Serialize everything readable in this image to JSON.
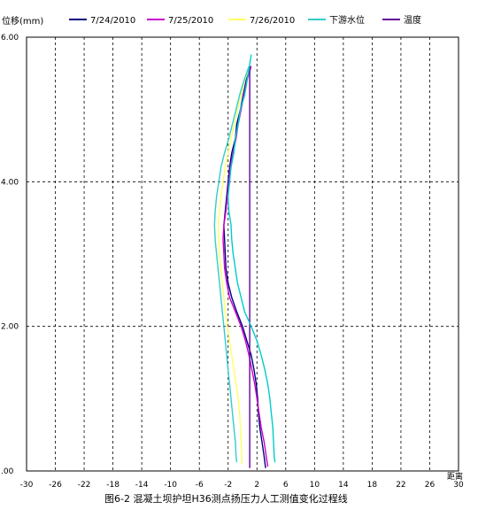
{
  "chart_data": {
    "type": "line",
    "title": "",
    "caption": "图6-2  混凝土坝护坦H36测点扬压力人工测值变化过程线",
    "ylabel": "位移(mm)",
    "xlabel": "距离",
    "xlim": [
      -30,
      30
    ],
    "ylim": [
      0,
      30
    ],
    "x_ticks": [
      -30,
      -26,
      -22,
      -18,
      -14,
      -10,
      -6,
      -2,
      2,
      6,
      10,
      14,
      18,
      22,
      26,
      30
    ],
    "x_tick_labels": [
      "-30",
      "-26",
      "-22",
      "-18",
      "-14",
      "-10",
      "-6",
      "-2",
      "2",
      "6",
      "10",
      "14",
      "18",
      "22",
      "26",
      "30"
    ],
    "y_tick_labels": [
      ".00",
      "2.00",
      "4.00",
      "6.00"
    ],
    "y_tick_values": [
      0,
      10,
      20,
      30
    ],
    "grid": true,
    "legend_position": "top",
    "series": [
      {
        "name": "7/24/2010",
        "color": "#000080",
        "points": [
          [
            1.1,
            28
          ],
          [
            0.5,
            27
          ],
          [
            0.1,
            26
          ],
          [
            -0.3,
            25
          ],
          [
            -0.8,
            24
          ],
          [
            -1.0,
            23
          ],
          [
            -1.5,
            22
          ],
          [
            -1.8,
            21
          ],
          [
            -2.0,
            20
          ],
          [
            -2.2,
            19
          ],
          [
            -2.4,
            18
          ],
          [
            -2.6,
            17
          ],
          [
            -2.5,
            16
          ],
          [
            -2.4,
            15
          ],
          [
            -2.3,
            14
          ],
          [
            -2.0,
            13
          ],
          [
            -1.5,
            12
          ],
          [
            -0.8,
            11
          ],
          [
            0.0,
            10
          ],
          [
            0.6,
            9
          ],
          [
            1.2,
            8
          ],
          [
            1.6,
            7
          ],
          [
            1.9,
            6
          ],
          [
            2.1,
            5
          ],
          [
            2.2,
            4
          ],
          [
            2.4,
            3
          ],
          [
            2.7,
            2
          ],
          [
            3.0,
            1
          ],
          [
            3.2,
            0.2
          ]
        ]
      },
      {
        "name": "7/25/2010",
        "color": "#cc00cc",
        "points": [
          [
            1.2,
            28
          ],
          [
            0.6,
            27
          ],
          [
            0.2,
            26
          ],
          [
            -0.2,
            25
          ],
          [
            -0.6,
            24
          ],
          [
            -0.9,
            23
          ],
          [
            -1.3,
            22
          ],
          [
            -1.7,
            21
          ],
          [
            -1.9,
            20
          ],
          [
            -2.1,
            19
          ],
          [
            -2.3,
            18
          ],
          [
            -2.6,
            17
          ],
          [
            -2.7,
            16
          ],
          [
            -2.6,
            15
          ],
          [
            -2.5,
            14
          ],
          [
            -2.2,
            13
          ],
          [
            -1.8,
            12
          ],
          [
            -1.0,
            11
          ],
          [
            -0.2,
            10
          ],
          [
            0.4,
            9
          ],
          [
            0.9,
            8
          ],
          [
            1.3,
            7
          ],
          [
            1.7,
            6
          ],
          [
            2.0,
            5
          ],
          [
            2.3,
            4
          ],
          [
            2.6,
            3
          ],
          [
            3.0,
            2
          ],
          [
            3.3,
            1
          ],
          [
            3.5,
            0.3
          ]
        ]
      },
      {
        "name": "7/26/2010",
        "color": "#ffff66",
        "points": [
          [
            1.0,
            28
          ],
          [
            0.3,
            27
          ],
          [
            -0.2,
            26
          ],
          [
            -0.7,
            25
          ],
          [
            -1.1,
            24
          ],
          [
            -1.6,
            23
          ],
          [
            -2.0,
            22
          ],
          [
            -2.4,
            21
          ],
          [
            -2.7,
            20
          ],
          [
            -3.0,
            19
          ],
          [
            -3.2,
            18
          ],
          [
            -3.4,
            17
          ],
          [
            -3.3,
            16
          ],
          [
            -3.2,
            15
          ],
          [
            -3.0,
            14
          ],
          [
            -2.8,
            13
          ],
          [
            -2.6,
            12
          ],
          [
            -2.4,
            11
          ],
          [
            -2.1,
            10
          ],
          [
            -1.8,
            9
          ],
          [
            -1.5,
            8
          ],
          [
            -1.2,
            7
          ],
          [
            -0.9,
            6
          ],
          [
            -0.6,
            5
          ],
          [
            -0.4,
            4
          ],
          [
            -0.3,
            3
          ],
          [
            -0.2,
            2
          ],
          [
            -0.1,
            1
          ],
          [
            -0.1,
            0.5
          ]
        ]
      },
      {
        "name": "下游水位",
        "color": "#33cccc",
        "points": [
          [
            0.9,
            28
          ],
          [
            0.2,
            27
          ],
          [
            -0.4,
            26
          ],
          [
            -0.9,
            25
          ],
          [
            -1.4,
            24
          ],
          [
            -1.9,
            23
          ],
          [
            -2.5,
            22
          ],
          [
            -3.0,
            21
          ],
          [
            -3.3,
            20
          ],
          [
            -3.6,
            19
          ],
          [
            -3.8,
            18
          ],
          [
            -3.9,
            17
          ],
          [
            -3.8,
            16
          ],
          [
            -3.6,
            15
          ],
          [
            -3.4,
            14
          ],
          [
            -3.2,
            13
          ],
          [
            -3.0,
            12
          ],
          [
            -2.8,
            11
          ],
          [
            -2.6,
            10
          ],
          [
            -2.4,
            9
          ],
          [
            -2.2,
            8
          ],
          [
            -2.0,
            7
          ],
          [
            -1.8,
            6
          ],
          [
            -1.6,
            5
          ],
          [
            -1.4,
            4
          ],
          [
            -1.2,
            3
          ],
          [
            -1.0,
            2
          ],
          [
            -0.9,
            1
          ],
          [
            -0.8,
            0.6
          ]
        ]
      },
      {
        "name": "温度",
        "color": "#660099",
        "points": [
          [
            1.0,
            28
          ],
          [
            1.0,
            25
          ],
          [
            1.0,
            22
          ],
          [
            1.0,
            19
          ],
          [
            1.0,
            16
          ],
          [
            1.0,
            13
          ],
          [
            1.0,
            10
          ],
          [
            1.0,
            7
          ],
          [
            1.0,
            4
          ],
          [
            1.0,
            1
          ],
          [
            1.0,
            0.2
          ]
        ]
      },
      {
        "name": "",
        "color": "#00cccc",
        "points": [
          [
            1.2,
            28.8
          ],
          [
            0.8,
            27.5
          ],
          [
            0.3,
            26
          ],
          [
            -0.3,
            25
          ],
          [
            -0.6,
            24
          ],
          [
            -1.0,
            23
          ],
          [
            -1.2,
            22
          ],
          [
            -1.6,
            21
          ],
          [
            -1.8,
            20
          ],
          [
            -2.0,
            19
          ],
          [
            -1.9,
            18
          ],
          [
            -1.6,
            17
          ],
          [
            -1.5,
            16
          ],
          [
            -1.3,
            15
          ],
          [
            -1.0,
            14
          ],
          [
            -0.7,
            13
          ],
          [
            -0.2,
            12
          ],
          [
            0.3,
            11
          ],
          [
            1.2,
            10
          ],
          [
            2.0,
            9
          ],
          [
            2.6,
            8
          ],
          [
            3.1,
            7
          ],
          [
            3.5,
            6
          ],
          [
            3.8,
            5
          ],
          [
            4.0,
            4
          ],
          [
            4.2,
            3
          ],
          [
            4.3,
            2
          ],
          [
            4.4,
            1
          ],
          [
            4.5,
            0.6
          ]
        ]
      }
    ]
  }
}
